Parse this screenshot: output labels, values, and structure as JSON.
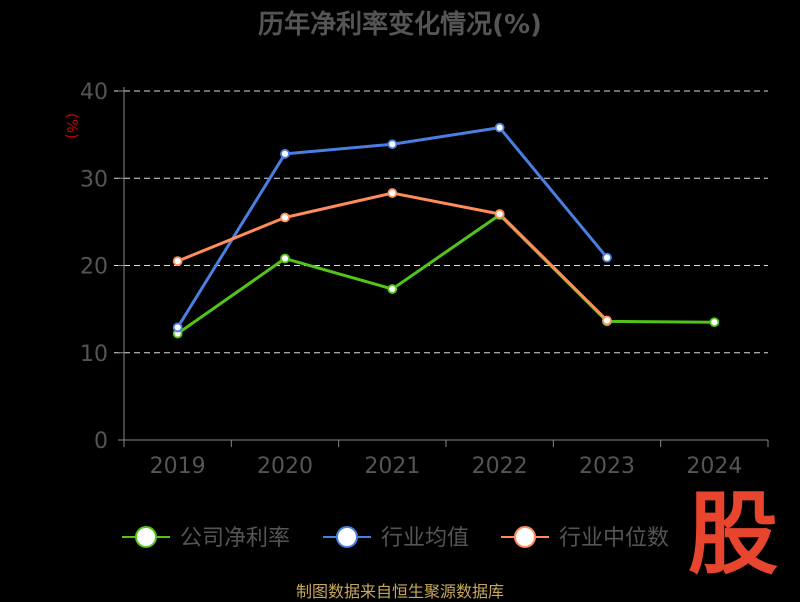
{
  "chart_data": {
    "type": "line",
    "title": "历年净利率变化情况(%)",
    "ylabel": "(%)",
    "xlabel": "",
    "categories": [
      "2019",
      "2020",
      "2021",
      "2022",
      "2023",
      "2024"
    ],
    "ylim": [
      0,
      40
    ],
    "yticks": [
      0,
      10,
      20,
      30,
      40
    ],
    "grid": true,
    "legend_position": "bottom",
    "series": [
      {
        "name": "公司净利率",
        "color": "#52c41a",
        "values": [
          12.2,
          20.8,
          17.3,
          25.8,
          13.6,
          13.5
        ]
      },
      {
        "name": "行业均值",
        "color": "#4a7ee0",
        "values": [
          12.9,
          32.8,
          33.9,
          35.8,
          20.9,
          null
        ]
      },
      {
        "name": "行业中位数",
        "color": "#ff8c5a",
        "values": [
          20.5,
          25.5,
          28.3,
          25.9,
          13.7,
          null
        ]
      }
    ]
  },
  "footer": "制图数据来自恒生聚源数据库",
  "watermark": "股"
}
